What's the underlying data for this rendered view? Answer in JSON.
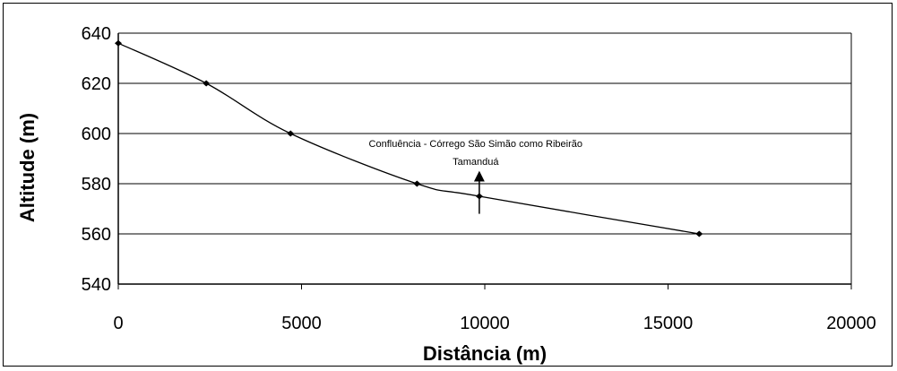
{
  "chart_data": {
    "type": "line",
    "title": "",
    "xlabel": "Distância (m)",
    "ylabel": "Altitude (m)",
    "xlim": [
      0,
      20000
    ],
    "ylim": [
      540,
      640
    ],
    "x_ticks": [
      0,
      5000,
      10000,
      15000,
      20000
    ],
    "y_ticks": [
      540,
      560,
      580,
      600,
      620,
      640
    ],
    "grid": "horizontal",
    "legend": "none",
    "series": [
      {
        "x": [
          0,
          2400,
          4700,
          8150,
          9850,
          15850
        ],
        "y": [
          636,
          620,
          600,
          580,
          575,
          560
        ]
      }
    ],
    "annotations": [
      {
        "lines": [
          "Confluência - Córrego São Simão como Ribeirão",
          "Tamanduá"
        ],
        "arrow_x": 9850,
        "arrow_from": 568,
        "arrow_to": 583
      }
    ],
    "colors": {
      "line": "#000000",
      "grid": "#000000",
      "background": "#ffffff"
    }
  }
}
